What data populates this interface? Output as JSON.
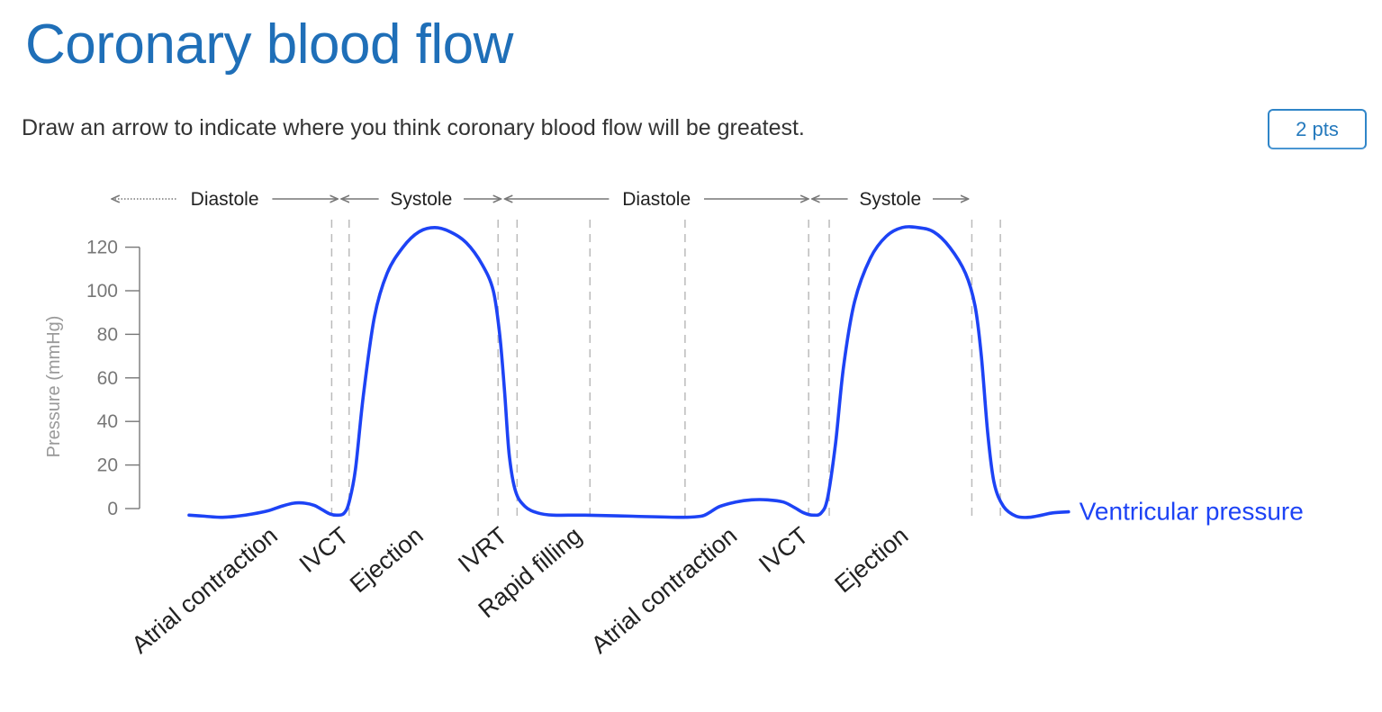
{
  "page": {
    "title": "Coronary blood flow",
    "instruction": "Draw an arrow to indicate where you think coronary blood flow will be greatest.",
    "points_label": "2 pts"
  },
  "colors": {
    "title": "#1f6fb8",
    "curve": "#1d43f5",
    "axis": "#777777",
    "divider": "#bbbbbb",
    "phase_arrow": "#777777"
  },
  "chart_data": {
    "type": "line",
    "title": "",
    "xlabel": "",
    "ylabel": "Pressure (mmHg)",
    "ylim": [
      0,
      120
    ],
    "yticks": [
      0,
      20,
      40,
      60,
      80,
      100,
      120
    ],
    "grid": false,
    "series": [
      {
        "name": "Ventricular pressure",
        "points": [
          [
            0.0,
            -3
          ],
          [
            1.0,
            -3.5
          ],
          [
            2.0,
            -4
          ],
          [
            3.0,
            -3.5
          ],
          [
            4.0,
            -2.5
          ],
          [
            5.0,
            -1
          ],
          [
            5.8,
            1
          ],
          [
            6.6,
            2.5
          ],
          [
            7.3,
            2.5
          ],
          [
            7.9,
            1.5
          ],
          [
            8.4,
            -0.5
          ],
          [
            8.9,
            -2.5
          ],
          [
            9.4,
            -3
          ],
          [
            9.8,
            -2
          ],
          [
            10.1,
            3
          ],
          [
            10.5,
            18
          ],
          [
            11.0,
            52
          ],
          [
            11.7,
            88
          ],
          [
            12.5,
            108
          ],
          [
            13.5,
            120
          ],
          [
            14.5,
            127
          ],
          [
            15.5,
            129
          ],
          [
            16.5,
            127
          ],
          [
            17.5,
            122
          ],
          [
            18.5,
            112
          ],
          [
            19.2,
            100
          ],
          [
            19.6,
            80
          ],
          [
            19.9,
            55
          ],
          [
            20.2,
            25
          ],
          [
            20.6,
            8
          ],
          [
            21.2,
            1
          ],
          [
            22.0,
            -2
          ],
          [
            23.0,
            -3
          ],
          [
            25.0,
            -3
          ],
          [
            28.0,
            -3.5
          ],
          [
            31.0,
            -4
          ],
          [
            32.3,
            -3.5
          ],
          [
            32.8,
            -2
          ],
          [
            33.5,
            1
          ],
          [
            34.5,
            3
          ],
          [
            35.5,
            4
          ],
          [
            36.5,
            4
          ],
          [
            37.5,
            3
          ],
          [
            38.2,
            0.5
          ],
          [
            38.8,
            -2
          ],
          [
            39.4,
            -3
          ],
          [
            39.9,
            -2
          ],
          [
            40.3,
            5
          ],
          [
            40.8,
            30
          ],
          [
            41.3,
            65
          ],
          [
            42.0,
            95
          ],
          [
            43.0,
            115
          ],
          [
            44.0,
            125
          ],
          [
            45.0,
            129
          ],
          [
            46.0,
            129
          ],
          [
            47.0,
            127
          ],
          [
            48.0,
            120
          ],
          [
            49.0,
            108
          ],
          [
            49.6,
            93
          ],
          [
            50.0,
            70
          ],
          [
            50.4,
            35
          ],
          [
            50.8,
            12
          ],
          [
            51.4,
            1
          ],
          [
            52.2,
            -3.5
          ],
          [
            53.0,
            -4
          ],
          [
            53.8,
            -3
          ],
          [
            54.5,
            -2
          ],
          [
            55.5,
            -1.5
          ]
        ]
      }
    ],
    "phase_bands": [
      {
        "label": "Diastole",
        "from": -5,
        "to": 9.5,
        "left_dotted": true
      },
      {
        "label": "Systole",
        "from": 9.5,
        "to": 19.8
      },
      {
        "label": "Diastole",
        "from": 19.8,
        "to": 39.2
      },
      {
        "label": "Systole",
        "from": 39.2,
        "to": 49.3
      }
    ],
    "phase_dividers": [
      9.0,
      10.1,
      19.5,
      20.7,
      25.3,
      31.3,
      39.1,
      40.4,
      49.4,
      51.2
    ],
    "phase_labels": [
      {
        "label": "Atrial contraction",
        "x": 5.0
      },
      {
        "label": "IVCT",
        "x": 9.5
      },
      {
        "label": "Ejection",
        "x": 14.2
      },
      {
        "label": "IVRT",
        "x": 19.5
      },
      {
        "label": "Rapid filling",
        "x": 24.2
      },
      {
        "label": "Atrial contraction",
        "x": 34.0
      },
      {
        "label": "IVCT",
        "x": 38.5
      },
      {
        "label": "Ejection",
        "x": 44.8
      }
    ]
  }
}
